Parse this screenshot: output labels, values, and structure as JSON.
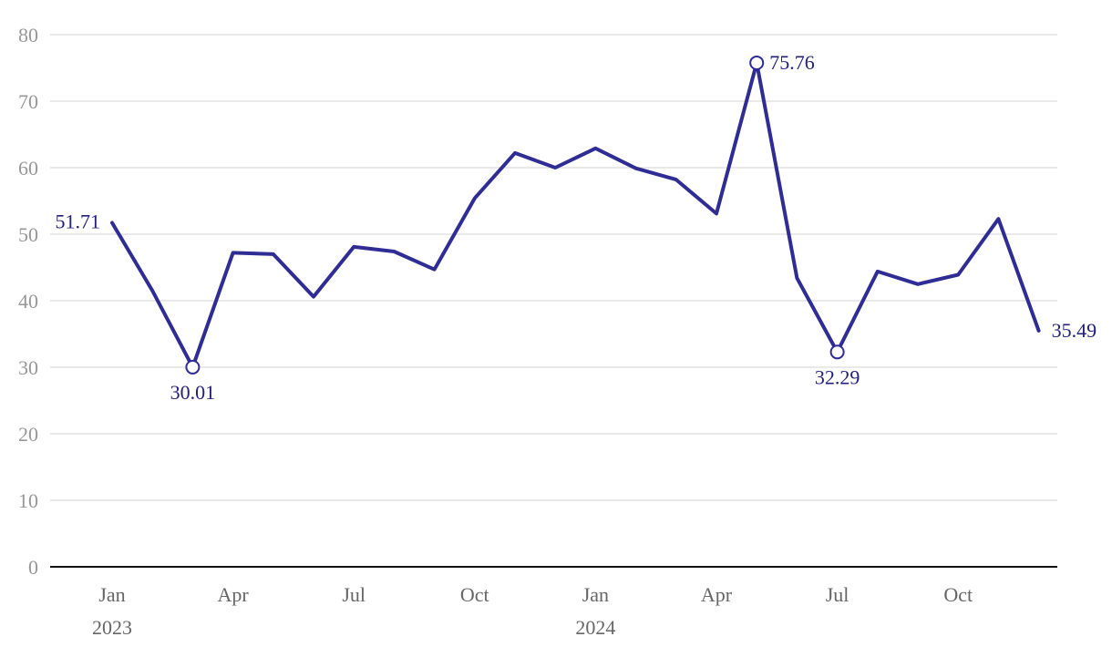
{
  "chart_data": {
    "type": "line",
    "title": "",
    "xlabel": "",
    "ylabel": "",
    "x": [
      "2023-01",
      "2023-02",
      "2023-03",
      "2023-04",
      "2023-05",
      "2023-06",
      "2023-07",
      "2023-08",
      "2023-09",
      "2023-10",
      "2023-11",
      "2023-12",
      "2024-01",
      "2024-02",
      "2024-03",
      "2024-04",
      "2024-05",
      "2024-06",
      "2024-07",
      "2024-08",
      "2024-09",
      "2024-10",
      "2024-11",
      "2024-12"
    ],
    "values": [
      51.71,
      41.5,
      30.01,
      47.2,
      47.0,
      40.6,
      48.1,
      47.4,
      44.7,
      55.4,
      62.2,
      60.0,
      62.9,
      59.9,
      58.2,
      53.1,
      75.76,
      43.4,
      32.29,
      44.4,
      42.5,
      43.9,
      52.3,
      35.49
    ],
    "ylim": [
      0,
      80
    ],
    "yticks": [
      0,
      10,
      20,
      30,
      40,
      50,
      60,
      70,
      80
    ],
    "xticks": [
      {
        "index": 0,
        "label": "Jan",
        "year": "2023"
      },
      {
        "index": 3,
        "label": "Apr",
        "year": ""
      },
      {
        "index": 6,
        "label": "Jul",
        "year": ""
      },
      {
        "index": 9,
        "label": "Oct",
        "year": ""
      },
      {
        "index": 12,
        "label": "Jan",
        "year": "2024"
      },
      {
        "index": 15,
        "label": "Apr",
        "year": ""
      },
      {
        "index": 18,
        "label": "Jul",
        "year": ""
      },
      {
        "index": 21,
        "label": "Oct",
        "year": ""
      }
    ],
    "annotations": [
      {
        "index": 0,
        "label": "51.71",
        "placement": "left",
        "marker": false
      },
      {
        "index": 2,
        "label": "30.01",
        "placement": "below",
        "marker": true
      },
      {
        "index": 16,
        "label": "75.76",
        "placement": "right",
        "marker": true
      },
      {
        "index": 18,
        "label": "32.29",
        "placement": "below",
        "marker": true
      },
      {
        "index": 23,
        "label": "35.49",
        "placement": "right",
        "marker": false
      }
    ],
    "grid": "horizontal",
    "legend_position": "none",
    "colors": {
      "line": "#2f2c94",
      "annotation_text": "#23207a",
      "gridline": "#e2e2e2",
      "axis_line": "#111111",
      "y_tick_text": "#979797",
      "x_tick_text": "#666666",
      "marker_fill": "#ffffff"
    }
  }
}
